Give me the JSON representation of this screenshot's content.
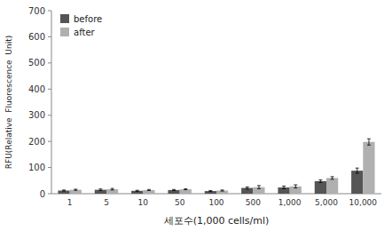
{
  "chart_data": {
    "type": "bar",
    "xlabel": "세포수(1,000 cells/ml)",
    "ylabel": "RFU(Relative  Fluorescence  Unit)",
    "categories": [
      "1",
      "5",
      "10",
      "50",
      "100",
      "500",
      "1,000",
      "5,000",
      "10,000"
    ],
    "series": [
      {
        "name": "before",
        "color": "#555555",
        "values": [
          12,
          15,
          11,
          14,
          10,
          22,
          24,
          48,
          88
        ],
        "errors": [
          2,
          3,
          2,
          2,
          2,
          4,
          5,
          5,
          10
        ]
      },
      {
        "name": "after",
        "color": "#b0b0b0",
        "values": [
          15,
          17,
          14,
          17,
          12,
          25,
          28,
          60,
          198
        ],
        "errors": [
          2,
          3,
          2,
          2,
          2,
          6,
          6,
          5,
          12
        ]
      }
    ],
    "ylim": [
      0,
      700
    ],
    "yticks": [
      0,
      100,
      200,
      300,
      400,
      500,
      600,
      700
    ],
    "grid": false,
    "legend": "upper left"
  }
}
